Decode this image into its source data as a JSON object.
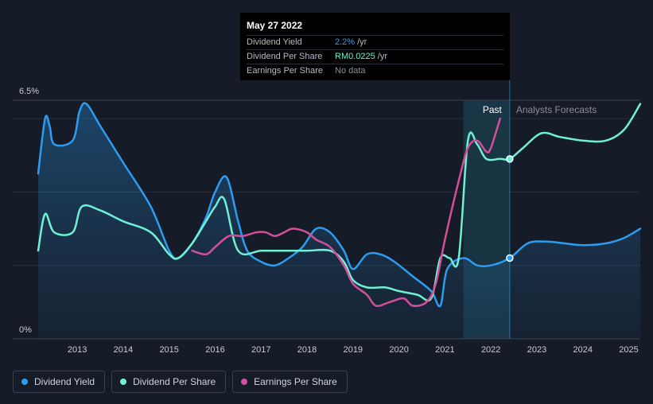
{
  "tooltip": {
    "date": "May 27 2022",
    "rows": [
      {
        "name": "Dividend Yield",
        "value": "2.2%",
        "unit": "/yr",
        "color": "#2d9cf0"
      },
      {
        "name": "Dividend Per Share",
        "value": "RM0.0225",
        "unit": "/yr",
        "color": "#6ff0d4"
      },
      {
        "name": "Earnings Per Share",
        "value": "No data",
        "unit": "",
        "color": "#8a8f98"
      }
    ]
  },
  "legend": [
    {
      "label": "Dividend Yield",
      "color": "#2d9cf0"
    },
    {
      "label": "Dividend Per Share",
      "color": "#6ff0d4"
    },
    {
      "label": "Earnings Per Share",
      "color": "#d44f9a"
    }
  ],
  "chart_data": {
    "type": "line",
    "x_ticks": [
      "2013",
      "2014",
      "2015",
      "2016",
      "2017",
      "2018",
      "2019",
      "2020",
      "2021",
      "2022",
      "2023",
      "2024",
      "2025"
    ],
    "xlim": [
      2012.15,
      2025.25
    ],
    "ylim": [
      0,
      6.5
    ],
    "y_ticks": [
      {
        "value": 6.5,
        "label": "6.5%"
      },
      {
        "value": 0,
        "label": "0%"
      }
    ],
    "grid": true,
    "regions": {
      "past": {
        "label": "Past",
        "from": 2021.4,
        "to": 2022.41
      },
      "forecast": {
        "label": "Analysts Forecasts",
        "from": 2022.41
      }
    },
    "series": [
      {
        "name": "Dividend Yield",
        "color": "#2d9cf0",
        "filled": true,
        "points": [
          [
            2012.15,
            4.5
          ],
          [
            2012.3,
            6.0
          ],
          [
            2012.4,
            5.8
          ],
          [
            2012.5,
            5.3
          ],
          [
            2012.9,
            5.4
          ],
          [
            2013.05,
            6.2
          ],
          [
            2013.2,
            6.4
          ],
          [
            2013.5,
            5.8
          ],
          [
            2014,
            4.8
          ],
          [
            2014.6,
            3.6
          ],
          [
            2015,
            2.4
          ],
          [
            2015.2,
            2.2
          ],
          [
            2015.5,
            2.6
          ],
          [
            2015.8,
            3.3
          ],
          [
            2016.0,
            4.0
          ],
          [
            2016.25,
            4.4
          ],
          [
            2016.5,
            3.2
          ],
          [
            2016.7,
            2.4
          ],
          [
            2017.0,
            2.1
          ],
          [
            2017.3,
            2.0
          ],
          [
            2017.6,
            2.2
          ],
          [
            2017.9,
            2.5
          ],
          [
            2018.2,
            3.0
          ],
          [
            2018.5,
            2.9
          ],
          [
            2018.8,
            2.4
          ],
          [
            2019.0,
            1.9
          ],
          [
            2019.3,
            2.3
          ],
          [
            2019.6,
            2.3
          ],
          [
            2019.9,
            2.1
          ],
          [
            2020.3,
            1.7
          ],
          [
            2020.7,
            1.3
          ],
          [
            2020.9,
            0.9
          ],
          [
            2021.05,
            1.9
          ],
          [
            2021.4,
            2.2
          ],
          [
            2021.7,
            2.0
          ],
          [
            2022.0,
            2.0
          ],
          [
            2022.41,
            2.2
          ],
          [
            2022.8,
            2.6
          ],
          [
            2023.2,
            2.65
          ],
          [
            2023.6,
            2.6
          ],
          [
            2024.0,
            2.55
          ],
          [
            2024.5,
            2.6
          ],
          [
            2024.9,
            2.75
          ],
          [
            2025.25,
            3.0
          ]
        ]
      },
      {
        "name": "Dividend Per Share",
        "color": "#6ff0d4",
        "filled": false,
        "points": [
          [
            2012.15,
            2.4
          ],
          [
            2012.3,
            3.4
          ],
          [
            2012.5,
            2.9
          ],
          [
            2012.9,
            2.9
          ],
          [
            2013.1,
            3.6
          ],
          [
            2013.5,
            3.5
          ],
          [
            2014,
            3.2
          ],
          [
            2014.6,
            2.9
          ],
          [
            2015,
            2.3
          ],
          [
            2015.2,
            2.2
          ],
          [
            2015.5,
            2.6
          ],
          [
            2015.8,
            3.2
          ],
          [
            2016.0,
            3.6
          ],
          [
            2016.2,
            3.8
          ],
          [
            2016.5,
            2.4
          ],
          [
            2017,
            2.4
          ],
          [
            2017.5,
            2.4
          ],
          [
            2018.0,
            2.4
          ],
          [
            2018.5,
            2.4
          ],
          [
            2018.8,
            2.1
          ],
          [
            2019.0,
            1.6
          ],
          [
            2019.3,
            1.4
          ],
          [
            2019.7,
            1.4
          ],
          [
            2020.0,
            1.3
          ],
          [
            2020.4,
            1.2
          ],
          [
            2020.7,
            1.1
          ],
          [
            2020.9,
            2.2
          ],
          [
            2021.1,
            2.2
          ],
          [
            2021.3,
            2.2
          ],
          [
            2021.5,
            5.4
          ],
          [
            2021.7,
            5.3
          ],
          [
            2021.9,
            4.9
          ],
          [
            2022.2,
            4.9
          ],
          [
            2022.41,
            4.9
          ],
          [
            2022.7,
            5.2
          ],
          [
            2023.1,
            5.6
          ],
          [
            2023.5,
            5.5
          ],
          [
            2024.0,
            5.4
          ],
          [
            2024.5,
            5.4
          ],
          [
            2024.9,
            5.7
          ],
          [
            2025.25,
            6.4
          ]
        ]
      },
      {
        "name": "Earnings Per Share",
        "color": "#d44f9a",
        "filled": false,
        "points": [
          [
            2015.5,
            2.4
          ],
          [
            2015.8,
            2.3
          ],
          [
            2016.0,
            2.5
          ],
          [
            2016.3,
            2.8
          ],
          [
            2016.6,
            2.8
          ],
          [
            2016.9,
            2.9
          ],
          [
            2017.1,
            2.9
          ],
          [
            2017.3,
            2.8
          ],
          [
            2017.5,
            2.9
          ],
          [
            2017.7,
            3.0
          ],
          [
            2018.0,
            2.9
          ],
          [
            2018.2,
            2.7
          ],
          [
            2018.5,
            2.5
          ],
          [
            2018.8,
            2.0
          ],
          [
            2019.0,
            1.5
          ],
          [
            2019.3,
            1.2
          ],
          [
            2019.5,
            0.9
          ],
          [
            2019.8,
            1.0
          ],
          [
            2020.1,
            1.1
          ],
          [
            2020.3,
            0.9
          ],
          [
            2020.6,
            1.0
          ],
          [
            2020.8,
            1.5
          ],
          [
            2021.0,
            2.7
          ],
          [
            2021.3,
            4.3
          ],
          [
            2021.5,
            5.2
          ],
          [
            2021.7,
            5.4
          ],
          [
            2021.9,
            5.1
          ],
          [
            2022.0,
            5.2
          ],
          [
            2022.2,
            6.0
          ]
        ]
      }
    ],
    "markers": [
      {
        "series": "Dividend Per Share",
        "x": 2022.41,
        "y": 4.9
      },
      {
        "series": "Dividend Yield",
        "x": 2022.41,
        "y": 2.2
      }
    ]
  }
}
